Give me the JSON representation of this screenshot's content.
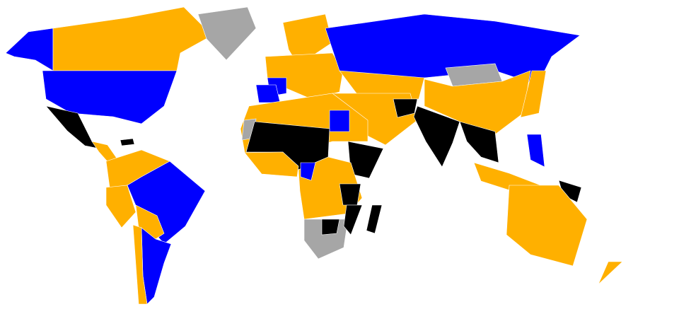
{
  "categories": {
    "blue": "#0000ff",
    "orange": "#ffb000",
    "black": "#000000",
    "gray": "#a6a6a6"
  },
  "map_regions": [
    {
      "name": "alaska",
      "category": "blue"
    },
    {
      "name": "canada",
      "category": "orange"
    },
    {
      "name": "greenland",
      "category": "gray"
    },
    {
      "name": "usa",
      "category": "blue"
    },
    {
      "name": "mexico",
      "category": "black"
    },
    {
      "name": "central-america",
      "category": "orange"
    },
    {
      "name": "caribbean",
      "category": "black"
    },
    {
      "name": "northern-south-america",
      "category": "orange"
    },
    {
      "name": "brazil",
      "category": "blue"
    },
    {
      "name": "peru",
      "category": "orange"
    },
    {
      "name": "bolivia-paraguay",
      "category": "orange"
    },
    {
      "name": "argentina",
      "category": "blue"
    },
    {
      "name": "chile",
      "category": "orange"
    },
    {
      "name": "scandinavia",
      "category": "orange"
    },
    {
      "name": "europe",
      "category": "orange"
    },
    {
      "name": "france",
      "category": "blue"
    },
    {
      "name": "spain",
      "category": "blue"
    },
    {
      "name": "russia",
      "category": "blue"
    },
    {
      "name": "kazakhstan",
      "category": "orange"
    },
    {
      "name": "mongolia",
      "category": "gray"
    },
    {
      "name": "china",
      "category": "orange"
    },
    {
      "name": "middle-east",
      "category": "orange"
    },
    {
      "name": "afghanistan",
      "category": "black"
    },
    {
      "name": "india",
      "category": "black"
    },
    {
      "name": "southeast-asia",
      "category": "black"
    },
    {
      "name": "japan",
      "category": "orange"
    },
    {
      "name": "philippines",
      "category": "blue"
    },
    {
      "name": "indonesia",
      "category": "orange"
    },
    {
      "name": "papua-new-guinea",
      "category": "black"
    },
    {
      "name": "australia",
      "category": "orange"
    },
    {
      "name": "new-zealand",
      "category": "orange"
    },
    {
      "name": "north-africa",
      "category": "orange"
    },
    {
      "name": "western-sahara",
      "category": "gray"
    },
    {
      "name": "egypt",
      "category": "blue"
    },
    {
      "name": "sahel",
      "category": "black"
    },
    {
      "name": "west-africa",
      "category": "orange"
    },
    {
      "name": "horn-of-africa",
      "category": "black"
    },
    {
      "name": "central-africa",
      "category": "orange"
    },
    {
      "name": "congo",
      "category": "blue"
    },
    {
      "name": "east-africa",
      "category": "black"
    },
    {
      "name": "southern-africa",
      "category": "gray"
    },
    {
      "name": "zimbabwe",
      "category": "black"
    },
    {
      "name": "mozambique",
      "category": "black"
    },
    {
      "name": "madagascar",
      "category": "black"
    }
  ]
}
